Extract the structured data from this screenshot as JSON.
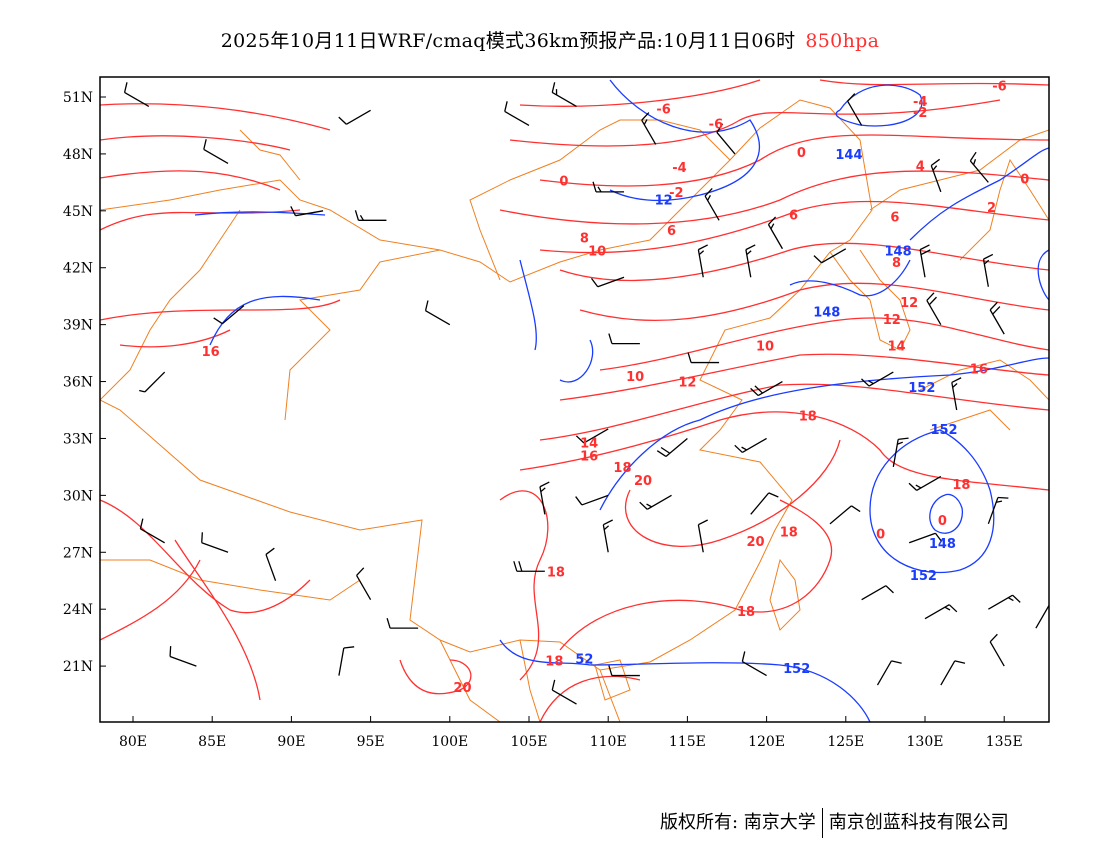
{
  "title": {
    "text": "2025年10月11日WRF/cmaq模式36km预报产品:10月11日06时",
    "level": "850hpa",
    "level_color": "#ff3030"
  },
  "footer": {
    "copyright": "版权所有: 南京大学",
    "company": "南京创蓝科技有限公司"
  },
  "map": {
    "lon_range": [
      78,
      138
    ],
    "lat_range": [
      18,
      52
    ],
    "lon_ticks": [
      "80E",
      "85E",
      "90E",
      "95E",
      "100E",
      "105E",
      "110E",
      "115E",
      "120E",
      "125E",
      "130E",
      "135E"
    ],
    "lon_values": [
      80,
      85,
      90,
      95,
      100,
      105,
      110,
      115,
      120,
      125,
      130,
      135
    ],
    "lat_ticks": [
      "51N",
      "48N",
      "45N",
      "42N",
      "39N",
      "36N",
      "33N",
      "30N",
      "27N",
      "24N",
      "21N"
    ],
    "lat_values": [
      51,
      48,
      45,
      42,
      39,
      36,
      33,
      30,
      27,
      24,
      21
    ],
    "colors": {
      "temperature": "#ff3030",
      "height": "#1a3cff",
      "border": "#f08020",
      "wind": "#000000"
    },
    "temperature_labels": [
      {
        "text": "-6",
        "lon": 134.7,
        "lat": 51.6
      },
      {
        "text": "-6",
        "lon": 113.5,
        "lat": 50.4
      },
      {
        "text": "-6",
        "lon": 116.8,
        "lat": 49.6
      },
      {
        "text": "-4",
        "lon": 129.7,
        "lat": 50.8
      },
      {
        "text": "-2",
        "lon": 129.7,
        "lat": 50.2
      },
      {
        "text": "-4",
        "lon": 114.5,
        "lat": 47.3
      },
      {
        "text": "4",
        "lon": 129.7,
        "lat": 47.4
      },
      {
        "text": "0",
        "lon": 122.2,
        "lat": 48.1
      },
      {
        "text": "0",
        "lon": 136.3,
        "lat": 46.7
      },
      {
        "text": "-2",
        "lon": 114.3,
        "lat": 46.0
      },
      {
        "text": "0",
        "lon": 107.2,
        "lat": 46.6
      },
      {
        "text": "2",
        "lon": 134.2,
        "lat": 45.2
      },
      {
        "text": "6",
        "lon": 121.7,
        "lat": 44.8
      },
      {
        "text": "6",
        "lon": 128.1,
        "lat": 44.7
      },
      {
        "text": "6",
        "lon": 114.0,
        "lat": 44.0
      },
      {
        "text": "8",
        "lon": 108.5,
        "lat": 43.6
      },
      {
        "text": "8",
        "lon": 128.2,
        "lat": 42.3
      },
      {
        "text": "10",
        "lon": 109.3,
        "lat": 42.9
      },
      {
        "text": "12",
        "lon": 129.0,
        "lat": 40.2
      },
      {
        "text": "12",
        "lon": 127.9,
        "lat": 39.3
      },
      {
        "text": "14",
        "lon": 128.2,
        "lat": 37.9
      },
      {
        "text": "16",
        "lon": 84.9,
        "lat": 37.6
      },
      {
        "text": "16",
        "lon": 133.4,
        "lat": 36.7
      },
      {
        "text": "10",
        "lon": 119.9,
        "lat": 37.9
      },
      {
        "text": "10",
        "lon": 111.7,
        "lat": 36.3
      },
      {
        "text": "12",
        "lon": 115.0,
        "lat": 36.0
      },
      {
        "text": "18",
        "lon": 122.6,
        "lat": 34.2
      },
      {
        "text": "14",
        "lon": 108.8,
        "lat": 32.8
      },
      {
        "text": "16",
        "lon": 108.8,
        "lat": 32.1
      },
      {
        "text": "18",
        "lon": 110.9,
        "lat": 31.5
      },
      {
        "text": "20",
        "lon": 112.2,
        "lat": 30.8
      },
      {
        "text": "18",
        "lon": 132.3,
        "lat": 30.6
      },
      {
        "text": "18",
        "lon": 121.4,
        "lat": 28.1
      },
      {
        "text": "20",
        "lon": 119.3,
        "lat": 27.6
      },
      {
        "text": "0",
        "lon": 127.2,
        "lat": 28.0
      },
      {
        "text": "18",
        "lon": 106.7,
        "lat": 26.0
      },
      {
        "text": "18",
        "lon": 118.7,
        "lat": 23.9
      },
      {
        "text": "18",
        "lon": 106.6,
        "lat": 21.3
      },
      {
        "text": "20",
        "lon": 100.8,
        "lat": 19.9
      },
      {
        "text": "0",
        "lon": 131.1,
        "lat": 28.7
      }
    ],
    "height_labels": [
      {
        "text": "144",
        "lon": 125.2,
        "lat": 48.0
      },
      {
        "text": "12",
        "lon": 113.5,
        "lat": 45.6
      },
      {
        "text": "148",
        "lon": 128.3,
        "lat": 42.9
      },
      {
        "text": "148",
        "lon": 123.8,
        "lat": 39.7
      },
      {
        "text": "152",
        "lon": 129.8,
        "lat": 35.7
      },
      {
        "text": "152",
        "lon": 131.2,
        "lat": 33.5
      },
      {
        "text": "148",
        "lon": 131.1,
        "lat": 27.5
      },
      {
        "text": "152",
        "lon": 129.9,
        "lat": 25.8
      },
      {
        "text": "52",
        "lon": 108.5,
        "lat": 21.4
      },
      {
        "text": "152",
        "lon": 121.9,
        "lat": 20.9
      }
    ],
    "wind_barbs": [
      {
        "lon": 81,
        "lat": 50.5,
        "dir": 300,
        "spd": 8
      },
      {
        "lon": 95,
        "lat": 50.3,
        "dir": 240,
        "spd": 8
      },
      {
        "lon": 105,
        "lat": 49.5,
        "dir": 300,
        "spd": 10
      },
      {
        "lon": 108,
        "lat": 50.5,
        "dir": 300,
        "spd": 12
      },
      {
        "lon": 113,
        "lat": 48.5,
        "dir": 330,
        "spd": 12
      },
      {
        "lon": 118,
        "lat": 48,
        "dir": 320,
        "spd": 10
      },
      {
        "lon": 126,
        "lat": 49.5,
        "dir": 330,
        "spd": 8
      },
      {
        "lon": 131,
        "lat": 46,
        "dir": 340,
        "spd": 12
      },
      {
        "lon": 134,
        "lat": 46.5,
        "dir": 320,
        "spd": 14
      },
      {
        "lon": 86,
        "lat": 47.5,
        "dir": 300,
        "spd": 8
      },
      {
        "lon": 92,
        "lat": 45,
        "dir": 260,
        "spd": 8
      },
      {
        "lon": 96,
        "lat": 44.5,
        "dir": 270,
        "spd": 14
      },
      {
        "lon": 111,
        "lat": 46,
        "dir": 270,
        "spd": 12
      },
      {
        "lon": 117,
        "lat": 44.5,
        "dir": 330,
        "spd": 14
      },
      {
        "lon": 121,
        "lat": 43,
        "dir": 330,
        "spd": 12
      },
      {
        "lon": 125,
        "lat": 43,
        "dir": 240,
        "spd": 8
      },
      {
        "lon": 130,
        "lat": 41.5,
        "dir": 350,
        "spd": 16
      },
      {
        "lon": 134,
        "lat": 41,
        "dir": 350,
        "spd": 14
      },
      {
        "lon": 87,
        "lat": 40,
        "dir": 230,
        "spd": 8
      },
      {
        "lon": 100,
        "lat": 39,
        "dir": 300,
        "spd": 8
      },
      {
        "lon": 111,
        "lat": 41.5,
        "dir": 250,
        "spd": 10
      },
      {
        "lon": 116,
        "lat": 41.5,
        "dir": 350,
        "spd": 12
      },
      {
        "lon": 119,
        "lat": 41.5,
        "dir": 350,
        "spd": 12
      },
      {
        "lon": 131,
        "lat": 39,
        "dir": 330,
        "spd": 16
      },
      {
        "lon": 135,
        "lat": 38.5,
        "dir": 330,
        "spd": 16
      },
      {
        "lon": 112,
        "lat": 38,
        "dir": 270,
        "spd": 8
      },
      {
        "lon": 117,
        "lat": 37,
        "dir": 270,
        "spd": 10
      },
      {
        "lon": 121,
        "lat": 36,
        "dir": 240,
        "spd": 16
      },
      {
        "lon": 128,
        "lat": 36.5,
        "dir": 240,
        "spd": 14
      },
      {
        "lon": 132,
        "lat": 34.5,
        "dir": 350,
        "spd": 12
      },
      {
        "lon": 82,
        "lat": 36.5,
        "dir": 225,
        "spd": 6
      },
      {
        "lon": 110,
        "lat": 33.5,
        "dir": 240,
        "spd": 10
      },
      {
        "lon": 115,
        "lat": 33,
        "dir": 230,
        "spd": 16
      },
      {
        "lon": 120,
        "lat": 33,
        "dir": 240,
        "spd": 12
      },
      {
        "lon": 128,
        "lat": 31.5,
        "dir": 10,
        "spd": 12
      },
      {
        "lon": 131,
        "lat": 31,
        "dir": 240,
        "spd": 12
      },
      {
        "lon": 106,
        "lat": 29,
        "dir": 350,
        "spd": 12
      },
      {
        "lon": 110,
        "lat": 30,
        "dir": 250,
        "spd": 10
      },
      {
        "lon": 114,
        "lat": 30,
        "dir": 240,
        "spd": 12
      },
      {
        "lon": 119,
        "lat": 29,
        "dir": 40,
        "spd": 10
      },
      {
        "lon": 124,
        "lat": 28.5,
        "dir": 50,
        "spd": 8
      },
      {
        "lon": 129,
        "lat": 27.5,
        "dir": 70,
        "spd": 10
      },
      {
        "lon": 134,
        "lat": 28.5,
        "dir": 20,
        "spd": 12
      },
      {
        "lon": 82,
        "lat": 27.5,
        "dir": 300,
        "spd": 8
      },
      {
        "lon": 86,
        "lat": 27,
        "dir": 290,
        "spd": 8
      },
      {
        "lon": 89,
        "lat": 25.5,
        "dir": 340,
        "spd": 8
      },
      {
        "lon": 95,
        "lat": 24.5,
        "dir": 330,
        "spd": 8
      },
      {
        "lon": 106,
        "lat": 26,
        "dir": 270,
        "spd": 16
      },
      {
        "lon": 110,
        "lat": 27,
        "dir": 350,
        "spd": 14
      },
      {
        "lon": 116,
        "lat": 27,
        "dir": 350,
        "spd": 10
      },
      {
        "lon": 126,
        "lat": 24.5,
        "dir": 60,
        "spd": 10
      },
      {
        "lon": 130,
        "lat": 23.5,
        "dir": 60,
        "spd": 12
      },
      {
        "lon": 134,
        "lat": 24,
        "dir": 60,
        "spd": 12
      },
      {
        "lon": 137,
        "lat": 23,
        "dir": 30,
        "spd": 10
      },
      {
        "lon": 84,
        "lat": 21,
        "dir": 290,
        "spd": 8
      },
      {
        "lon": 93,
        "lat": 20.5,
        "dir": 10,
        "spd": 8
      },
      {
        "lon": 98,
        "lat": 23,
        "dir": 270,
        "spd": 8
      },
      {
        "lon": 112,
        "lat": 20.5,
        "dir": 270,
        "spd": 10
      },
      {
        "lon": 120,
        "lat": 20.5,
        "dir": 300,
        "spd": 8
      },
      {
        "lon": 127,
        "lat": 20,
        "dir": 30,
        "spd": 8
      },
      {
        "lon": 131,
        "lat": 20,
        "dir": 30,
        "spd": 8
      },
      {
        "lon": 135,
        "lat": 21,
        "dir": 330,
        "spd": 8
      },
      {
        "lon": 108,
        "lat": 19,
        "dir": 300,
        "spd": 8
      }
    ]
  }
}
